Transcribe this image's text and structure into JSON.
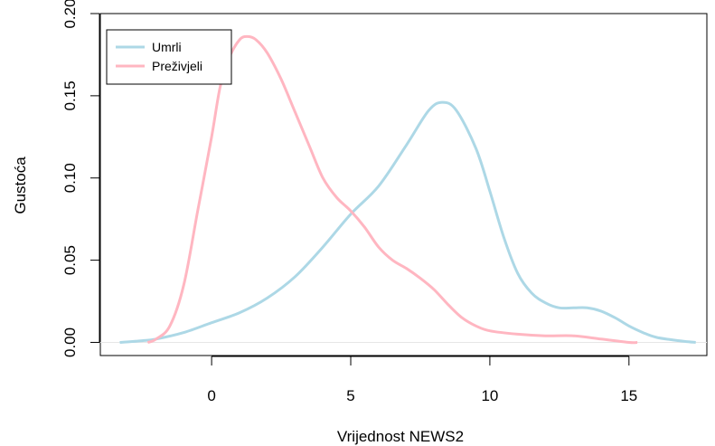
{
  "chart_data": {
    "type": "line",
    "xlabel": "Vrijednost NEWS2",
    "ylabel": "Gustoća",
    "xlim": [
      -4,
      17.8
    ],
    "ylim": [
      -0.008,
      0.2
    ],
    "x_ticks": [
      {
        "value": 0,
        "label": "0"
      },
      {
        "value": 5,
        "label": "5"
      },
      {
        "value": 10,
        "label": "10"
      },
      {
        "value": 15,
        "label": "15"
      }
    ],
    "y_ticks": [
      {
        "value": 0.0,
        "label": "0.00"
      },
      {
        "value": 0.05,
        "label": "0.05"
      },
      {
        "value": 0.1,
        "label": "0.10"
      },
      {
        "value": 0.15,
        "label": "0.15"
      },
      {
        "value": 0.2,
        "label": "0.20"
      }
    ],
    "baseline": {
      "y": 0,
      "color": "#e6e6e6"
    },
    "legend": {
      "position": "top-left"
    },
    "series": [
      {
        "name": "Umrli",
        "color": "#add8e6",
        "points": [
          [
            -3.3,
            0.0
          ],
          [
            -2.5,
            0.001
          ],
          [
            -2.0,
            0.002
          ],
          [
            -1.0,
            0.006
          ],
          [
            0.0,
            0.012
          ],
          [
            1.0,
            0.018
          ],
          [
            2.0,
            0.027
          ],
          [
            3.0,
            0.04
          ],
          [
            4.0,
            0.058
          ],
          [
            5.0,
            0.078
          ],
          [
            6.0,
            0.095
          ],
          [
            7.0,
            0.12
          ],
          [
            7.8,
            0.141
          ],
          [
            8.3,
            0.146
          ],
          [
            8.8,
            0.141
          ],
          [
            9.5,
            0.118
          ],
          [
            10.0,
            0.092
          ],
          [
            10.5,
            0.064
          ],
          [
            11.0,
            0.042
          ],
          [
            11.5,
            0.03
          ],
          [
            12.0,
            0.024
          ],
          [
            12.5,
            0.021
          ],
          [
            13.0,
            0.021
          ],
          [
            13.5,
            0.021
          ],
          [
            14.0,
            0.019
          ],
          [
            14.5,
            0.015
          ],
          [
            15.0,
            0.01
          ],
          [
            15.5,
            0.006
          ],
          [
            16.0,
            0.003
          ],
          [
            16.8,
            0.001
          ],
          [
            17.4,
            0.0
          ]
        ]
      },
      {
        "name": "Preživjeli",
        "color": "#ffb6c1",
        "points": [
          [
            -2.3,
            0.0
          ],
          [
            -2.0,
            0.002
          ],
          [
            -1.5,
            0.01
          ],
          [
            -1.0,
            0.035
          ],
          [
            -0.5,
            0.08
          ],
          [
            0.0,
            0.125
          ],
          [
            0.3,
            0.155
          ],
          [
            0.6,
            0.172
          ],
          [
            1.0,
            0.184
          ],
          [
            1.3,
            0.186
          ],
          [
            1.6,
            0.184
          ],
          [
            2.0,
            0.176
          ],
          [
            2.5,
            0.16
          ],
          [
            3.0,
            0.14
          ],
          [
            3.5,
            0.12
          ],
          [
            4.0,
            0.1
          ],
          [
            4.5,
            0.088
          ],
          [
            5.0,
            0.08
          ],
          [
            5.5,
            0.07
          ],
          [
            6.0,
            0.058
          ],
          [
            6.5,
            0.05
          ],
          [
            7.0,
            0.045
          ],
          [
            7.5,
            0.039
          ],
          [
            8.0,
            0.032
          ],
          [
            8.5,
            0.023
          ],
          [
            9.0,
            0.015
          ],
          [
            9.5,
            0.01
          ],
          [
            10.0,
            0.007
          ],
          [
            11.0,
            0.005
          ],
          [
            12.0,
            0.004
          ],
          [
            13.0,
            0.004
          ],
          [
            14.0,
            0.002
          ],
          [
            15.0,
            0.0
          ],
          [
            15.3,
            0.0
          ]
        ]
      }
    ]
  }
}
